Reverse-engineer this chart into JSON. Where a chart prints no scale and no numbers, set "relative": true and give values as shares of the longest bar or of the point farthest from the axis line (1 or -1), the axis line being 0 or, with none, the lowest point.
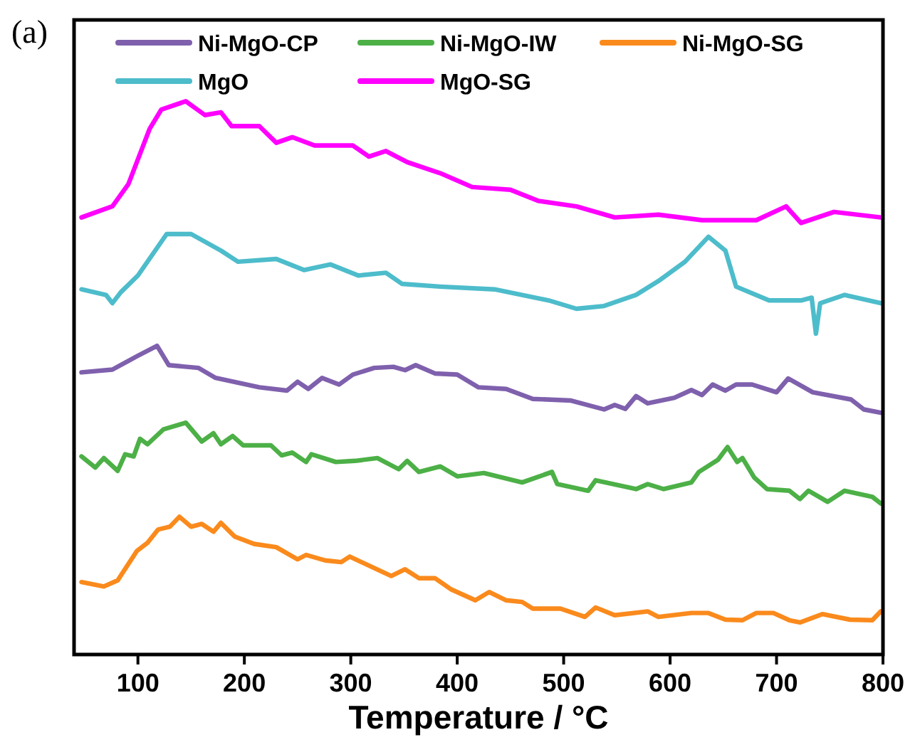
{
  "chart_data": {
    "type": "line",
    "relative": true,
    "xlabel": "Temperature / °C",
    "annotations": [
      "(a)"
    ],
    "xlim": [
      40,
      800
    ],
    "xticks": [
      100,
      200,
      300,
      400,
      500,
      600,
      700,
      800
    ],
    "legend": "top",
    "marker": "none",
    "line_style": "solid",
    "grid": false,
    "series": [
      {
        "name": "Ni-MgO-CP",
        "color": "#7f60ad",
        "x": [
          47,
          76,
          100,
          118,
          129,
          157,
          173,
          214,
          240,
          250,
          260,
          273,
          289,
          302,
          322,
          340,
          351,
          361,
          379,
          400,
          420,
          446,
          471,
          507,
          538,
          548,
          558,
          568,
          579,
          604,
          620,
          630,
          640,
          652,
          662,
          677,
          700,
          711,
          734,
          770,
          782,
          798
        ],
        "values": [
          0.51,
          0.515,
          0.54,
          0.558,
          0.523,
          0.518,
          0.5,
          0.483,
          0.477,
          0.493,
          0.48,
          0.5,
          0.488,
          0.506,
          0.518,
          0.52,
          0.514,
          0.523,
          0.508,
          0.506,
          0.483,
          0.48,
          0.462,
          0.459,
          0.443,
          0.451,
          0.444,
          0.467,
          0.454,
          0.464,
          0.478,
          0.469,
          0.488,
          0.477,
          0.488,
          0.488,
          0.474,
          0.499,
          0.474,
          0.461,
          0.443,
          0.437
        ]
      },
      {
        "name": "Ni-MgO-IW",
        "color": "#4cb047",
        "x": [
          47,
          60,
          68,
          81,
          88,
          96,
          102,
          109,
          124,
          145,
          160,
          171,
          178,
          189,
          199,
          225,
          235,
          245,
          258,
          263,
          286,
          304,
          325,
          345,
          353,
          364,
          384,
          400,
          425,
          461,
          489,
          494,
          523,
          530,
          568,
          579,
          594,
          620,
          627,
          645,
          654,
          663,
          668,
          679,
          691,
          712,
          722,
          730,
          748,
          764,
          790,
          798
        ],
        "values": [
          0.358,
          0.338,
          0.355,
          0.332,
          0.362,
          0.358,
          0.39,
          0.38,
          0.407,
          0.419,
          0.385,
          0.4,
          0.38,
          0.395,
          0.378,
          0.378,
          0.36,
          0.365,
          0.348,
          0.362,
          0.348,
          0.35,
          0.355,
          0.335,
          0.35,
          0.33,
          0.34,
          0.322,
          0.328,
          0.311,
          0.33,
          0.308,
          0.296,
          0.315,
          0.299,
          0.308,
          0.299,
          0.311,
          0.33,
          0.352,
          0.375,
          0.348,
          0.355,
          0.32,
          0.299,
          0.296,
          0.281,
          0.296,
          0.276,
          0.296,
          0.285,
          0.273
        ]
      },
      {
        "name": "Ni-MgO-SG",
        "color": "#fa8a1c",
        "x": [
          47,
          68,
          81,
          99,
          109,
          119,
          130,
          139,
          150,
          160,
          171,
          178,
          191,
          209,
          230,
          250,
          258,
          276,
          291,
          299,
          338,
          351,
          364,
          379,
          394,
          417,
          430,
          446,
          461,
          471,
          497,
          520,
          530,
          548,
          579,
          589,
          620,
          636,
          652,
          668,
          681,
          697,
          712,
          722,
          743,
          769,
          790,
          798
        ],
        "values": [
          0.131,
          0.123,
          0.134,
          0.187,
          0.202,
          0.226,
          0.231,
          0.249,
          0.231,
          0.236,
          0.222,
          0.238,
          0.213,
          0.2,
          0.194,
          0.172,
          0.18,
          0.17,
          0.167,
          0.177,
          0.142,
          0.154,
          0.138,
          0.138,
          0.118,
          0.098,
          0.113,
          0.098,
          0.095,
          0.083,
          0.083,
          0.068,
          0.085,
          0.071,
          0.078,
          0.068,
          0.075,
          0.075,
          0.063,
          0.062,
          0.075,
          0.075,
          0.062,
          0.058,
          0.073,
          0.063,
          0.062,
          0.078
        ]
      },
      {
        "name": "MgO",
        "color": "#4dbccb",
        "x": [
          47,
          70,
          76,
          84,
          100,
          127,
          150,
          178,
          194,
          230,
          256,
          281,
          307,
          333,
          348,
          384,
          435,
          486,
          512,
          538,
          568,
          589,
          614,
          636,
          652,
          662,
          693,
          723,
          733,
          737,
          741,
          764,
          798
        ],
        "values": [
          0.66,
          0.65,
          0.635,
          0.655,
          0.685,
          0.76,
          0.76,
          0.73,
          0.71,
          0.715,
          0.695,
          0.705,
          0.685,
          0.69,
          0.67,
          0.665,
          0.66,
          0.64,
          0.625,
          0.63,
          0.65,
          0.675,
          0.71,
          0.755,
          0.73,
          0.665,
          0.64,
          0.64,
          0.645,
          0.58,
          0.635,
          0.65,
          0.635
        ]
      },
      {
        "name": "MgO-SG",
        "color": "#ff00ff",
        "x": [
          47,
          76,
          91,
          111,
          122,
          145,
          163,
          178,
          188,
          214,
          230,
          245,
          266,
          302,
          317,
          333,
          353,
          384,
          414,
          450,
          476,
          512,
          548,
          589,
          630,
          681,
          709,
          723,
          754,
          798
        ],
        "values": [
          0.79,
          0.81,
          0.85,
          0.95,
          0.985,
          1,
          0.975,
          0.98,
          0.955,
          0.955,
          0.925,
          0.935,
          0.92,
          0.92,
          0.9,
          0.91,
          0.89,
          0.87,
          0.845,
          0.84,
          0.82,
          0.81,
          0.79,
          0.795,
          0.785,
          0.785,
          0.81,
          0.78,
          0.8,
          0.79
        ]
      }
    ]
  }
}
